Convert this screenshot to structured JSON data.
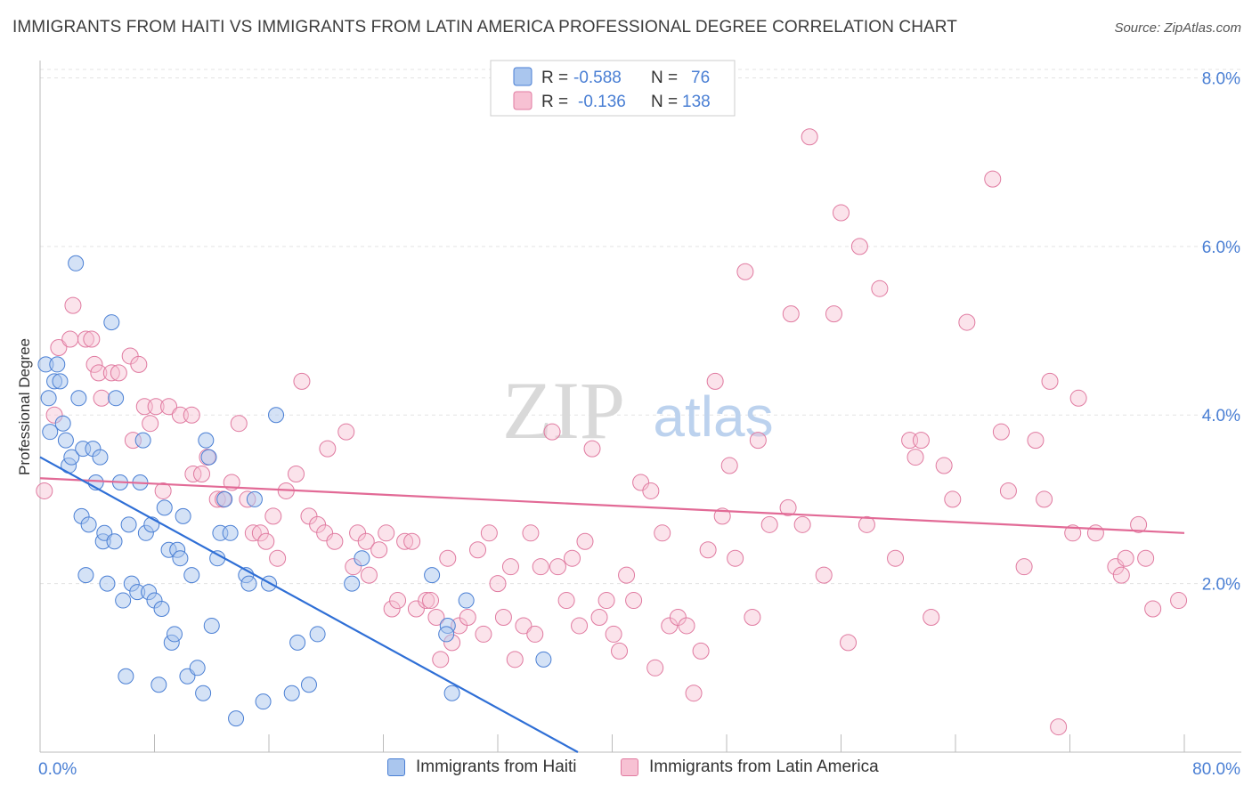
{
  "title": "IMMIGRANTS FROM HAITI VS IMMIGRANTS FROM LATIN AMERICA PROFESSIONAL DEGREE CORRELATION CHART",
  "source": "Source: ZipAtlas.com",
  "watermark": {
    "zip": "ZIP",
    "atlas": "atlas"
  },
  "colors": {
    "blue": "#4a7fd4",
    "blue_fill": "#aac6ee",
    "blue_line": "#2f6fd6",
    "pink": "#e07aa0",
    "pink_fill": "#f7c1d3",
    "pink_line": "#e26a96",
    "axis_label": "#4a7fd4",
    "grid": "#e3e3e3"
  },
  "legend": {
    "rows": [
      {
        "r_label": "R =",
        "r_value": "-0.588",
        "n_label": "N =",
        "n_value": "76"
      },
      {
        "r_label": "R =",
        "r_value": "-0.136",
        "n_label": "N =",
        "n_value": "138"
      }
    ]
  },
  "bottom_legend": [
    "Immigrants from Haiti",
    "Immigrants from Latin America"
  ],
  "chart_data": {
    "type": "scatter",
    "title": "IMMIGRANTS FROM HAITI VS IMMIGRANTS FROM LATIN AMERICA PROFESSIONAL DEGREE CORRELATION CHART",
    "xlabel": "",
    "ylabel": "Professional Degree",
    "xlim": [
      0,
      80
    ],
    "ylim": [
      0,
      8.1
    ],
    "x_ticks": [
      "0.0%",
      "80.0%"
    ],
    "y_ticks": [
      {
        "value": 2,
        "label": "2.0%"
      },
      {
        "value": 4,
        "label": "4.0%"
      },
      {
        "value": 6,
        "label": "6.0%"
      },
      {
        "value": 8,
        "label": "8.0%"
      }
    ],
    "grid": true,
    "legend_position": "top-center",
    "series": [
      {
        "name": "Immigrants from Haiti",
        "color": "#4a7fd4",
        "trend": {
          "x": [
            0,
            37.6
          ],
          "y": [
            3.5,
            0
          ]
        },
        "points": [
          [
            0.4,
            4.6
          ],
          [
            0.6,
            4.2
          ],
          [
            0.7,
            3.8
          ],
          [
            1.0,
            4.4
          ],
          [
            1.2,
            4.6
          ],
          [
            1.4,
            4.4
          ],
          [
            1.6,
            3.9
          ],
          [
            1.8,
            3.7
          ],
          [
            2.0,
            3.4
          ],
          [
            2.2,
            3.5
          ],
          [
            2.5,
            5.8
          ],
          [
            2.7,
            4.2
          ],
          [
            2.9,
            2.8
          ],
          [
            3.0,
            3.6
          ],
          [
            3.2,
            2.1
          ],
          [
            3.4,
            2.7
          ],
          [
            3.7,
            3.6
          ],
          [
            3.9,
            3.2
          ],
          [
            4.2,
            3.5
          ],
          [
            4.4,
            2.5
          ],
          [
            4.5,
            2.6
          ],
          [
            4.7,
            2.0
          ],
          [
            5.0,
            5.1
          ],
          [
            5.2,
            2.5
          ],
          [
            5.3,
            4.2
          ],
          [
            5.6,
            3.2
          ],
          [
            5.8,
            1.8
          ],
          [
            6.0,
            0.9
          ],
          [
            6.2,
            2.7
          ],
          [
            6.4,
            2.0
          ],
          [
            6.8,
            1.9
          ],
          [
            7.0,
            3.2
          ],
          [
            7.2,
            3.7
          ],
          [
            7.4,
            2.6
          ],
          [
            7.6,
            1.9
          ],
          [
            7.8,
            2.7
          ],
          [
            8.0,
            1.8
          ],
          [
            8.3,
            0.8
          ],
          [
            8.5,
            1.7
          ],
          [
            8.7,
            2.9
          ],
          [
            9.0,
            2.4
          ],
          [
            9.2,
            1.3
          ],
          [
            9.4,
            1.4
          ],
          [
            9.6,
            2.4
          ],
          [
            9.8,
            2.3
          ],
          [
            10.0,
            2.8
          ],
          [
            10.3,
            0.9
          ],
          [
            10.6,
            2.1
          ],
          [
            11.0,
            1.0
          ],
          [
            11.4,
            0.7
          ],
          [
            11.6,
            3.7
          ],
          [
            11.8,
            3.5
          ],
          [
            12.0,
            1.5
          ],
          [
            12.4,
            2.3
          ],
          [
            12.6,
            2.6
          ],
          [
            12.9,
            3.0
          ],
          [
            13.3,
            2.6
          ],
          [
            13.7,
            0.4
          ],
          [
            14.4,
            2.1
          ],
          [
            14.6,
            2.0
          ],
          [
            15.0,
            3.0
          ],
          [
            15.6,
            0.6
          ],
          [
            16.0,
            2.0
          ],
          [
            16.5,
            4.0
          ],
          [
            17.6,
            0.7
          ],
          [
            18.0,
            1.3
          ],
          [
            18.8,
            0.8
          ],
          [
            19.4,
            1.4
          ],
          [
            21.8,
            2.0
          ],
          [
            22.5,
            2.3
          ],
          [
            27.4,
            2.1
          ],
          [
            28.5,
            1.5
          ],
          [
            28.4,
            1.4
          ],
          [
            28.8,
            0.7
          ],
          [
            29.8,
            1.8
          ],
          [
            35.2,
            1.1
          ]
        ]
      },
      {
        "name": "Immigrants from Latin America",
        "color": "#e07aa0",
        "trend": {
          "x": [
            0,
            80
          ],
          "y": [
            3.25,
            2.6
          ]
        },
        "points": [
          [
            0.3,
            3.1
          ],
          [
            1.0,
            4.0
          ],
          [
            1.3,
            4.8
          ],
          [
            2.1,
            4.9
          ],
          [
            2.3,
            5.3
          ],
          [
            3.2,
            4.9
          ],
          [
            3.6,
            4.9
          ],
          [
            3.8,
            4.6
          ],
          [
            4.1,
            4.5
          ],
          [
            4.3,
            4.2
          ],
          [
            5.0,
            4.5
          ],
          [
            5.5,
            4.5
          ],
          [
            6.3,
            4.7
          ],
          [
            6.5,
            3.7
          ],
          [
            6.9,
            4.6
          ],
          [
            7.3,
            4.1
          ],
          [
            7.7,
            3.9
          ],
          [
            8.1,
            4.1
          ],
          [
            8.6,
            3.1
          ],
          [
            9.0,
            4.1
          ],
          [
            9.8,
            4.0
          ],
          [
            10.6,
            4.0
          ],
          [
            10.7,
            3.3
          ],
          [
            11.3,
            3.3
          ],
          [
            11.7,
            3.5
          ],
          [
            12.4,
            3.0
          ],
          [
            12.8,
            3.0
          ],
          [
            13.4,
            3.2
          ],
          [
            13.9,
            3.9
          ],
          [
            14.5,
            3.0
          ],
          [
            14.9,
            2.6
          ],
          [
            15.4,
            2.6
          ],
          [
            15.8,
            2.5
          ],
          [
            16.3,
            2.8
          ],
          [
            16.6,
            2.3
          ],
          [
            17.2,
            3.1
          ],
          [
            17.9,
            3.3
          ],
          [
            18.3,
            4.4
          ],
          [
            18.8,
            2.8
          ],
          [
            19.4,
            2.7
          ],
          [
            19.9,
            2.6
          ],
          [
            20.1,
            3.6
          ],
          [
            20.6,
            2.5
          ],
          [
            21.4,
            3.8
          ],
          [
            21.9,
            2.2
          ],
          [
            22.2,
            2.6
          ],
          [
            22.8,
            2.5
          ],
          [
            23.0,
            2.1
          ],
          [
            23.7,
            2.4
          ],
          [
            24.2,
            2.6
          ],
          [
            24.6,
            1.7
          ],
          [
            25.0,
            1.8
          ],
          [
            25.5,
            2.5
          ],
          [
            26.0,
            2.5
          ],
          [
            26.3,
            1.7
          ],
          [
            27.0,
            1.8
          ],
          [
            27.3,
            1.8
          ],
          [
            27.7,
            1.6
          ],
          [
            28.0,
            1.1
          ],
          [
            28.5,
            2.3
          ],
          [
            28.8,
            1.3
          ],
          [
            29.3,
            1.5
          ],
          [
            29.9,
            1.6
          ],
          [
            30.6,
            2.4
          ],
          [
            31.0,
            1.4
          ],
          [
            31.4,
            2.6
          ],
          [
            32.0,
            2.0
          ],
          [
            32.4,
            1.6
          ],
          [
            32.9,
            2.2
          ],
          [
            33.2,
            1.1
          ],
          [
            33.8,
            1.5
          ],
          [
            34.3,
            2.6
          ],
          [
            34.6,
            1.4
          ],
          [
            35.0,
            2.2
          ],
          [
            35.8,
            3.8
          ],
          [
            36.2,
            2.2
          ],
          [
            36.8,
            1.8
          ],
          [
            37.2,
            2.3
          ],
          [
            37.7,
            1.5
          ],
          [
            38.1,
            2.5
          ],
          [
            38.6,
            3.6
          ],
          [
            39.1,
            1.6
          ],
          [
            39.6,
            1.8
          ],
          [
            40.1,
            1.4
          ],
          [
            40.5,
            1.2
          ],
          [
            41.0,
            2.1
          ],
          [
            41.5,
            1.8
          ],
          [
            42.0,
            3.2
          ],
          [
            42.7,
            3.1
          ],
          [
            43.0,
            1.0
          ],
          [
            43.5,
            2.6
          ],
          [
            44.0,
            1.5
          ],
          [
            44.6,
            1.6
          ],
          [
            45.2,
            1.5
          ],
          [
            45.7,
            0.7
          ],
          [
            46.2,
            1.2
          ],
          [
            46.7,
            2.4
          ],
          [
            47.2,
            4.4
          ],
          [
            47.7,
            2.8
          ],
          [
            48.2,
            3.4
          ],
          [
            48.6,
            2.3
          ],
          [
            49.3,
            5.7
          ],
          [
            49.8,
            1.6
          ],
          [
            50.2,
            3.7
          ],
          [
            51.0,
            2.7
          ],
          [
            52.3,
            2.9
          ],
          [
            52.5,
            5.2
          ],
          [
            53.3,
            2.7
          ],
          [
            53.8,
            7.3
          ],
          [
            54.8,
            2.1
          ],
          [
            55.5,
            5.2
          ],
          [
            56.0,
            6.4
          ],
          [
            56.5,
            1.3
          ],
          [
            57.3,
            6.0
          ],
          [
            57.8,
            2.7
          ],
          [
            58.7,
            5.5
          ],
          [
            59.8,
            2.3
          ],
          [
            60.8,
            3.7
          ],
          [
            61.2,
            3.5
          ],
          [
            61.6,
            3.7
          ],
          [
            62.3,
            1.6
          ],
          [
            63.2,
            3.4
          ],
          [
            63.8,
            3.0
          ],
          [
            64.8,
            5.1
          ],
          [
            66.6,
            6.8
          ],
          [
            67.2,
            3.8
          ],
          [
            67.7,
            3.1
          ],
          [
            68.8,
            2.2
          ],
          [
            69.6,
            3.7
          ],
          [
            70.2,
            3.0
          ],
          [
            70.6,
            4.4
          ],
          [
            71.2,
            0.3
          ],
          [
            72.2,
            2.6
          ],
          [
            72.6,
            4.2
          ],
          [
            73.8,
            2.6
          ],
          [
            75.2,
            2.2
          ],
          [
            75.6,
            2.1
          ],
          [
            75.9,
            2.3
          ],
          [
            76.8,
            2.7
          ],
          [
            77.3,
            2.3
          ],
          [
            77.8,
            1.7
          ],
          [
            79.6,
            1.8
          ]
        ]
      }
    ]
  }
}
